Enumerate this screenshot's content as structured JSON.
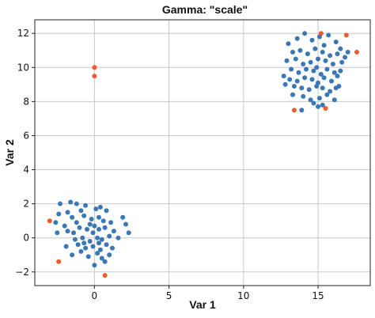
{
  "chart_data": {
    "type": "scatter",
    "title": "Gamma: \"scale\"",
    "xlabel": "Var 1",
    "ylabel": "Var 2",
    "xlim": [
      -4.0,
      18.5
    ],
    "ylim": [
      -2.8,
      12.8
    ],
    "xticks": [
      0,
      5,
      10,
      15
    ],
    "yticks": [
      -2,
      0,
      2,
      4,
      6,
      8,
      10,
      12
    ],
    "grid": true,
    "colors": {
      "inlier": "#3a78b5",
      "outlier": "#f15a2a"
    },
    "series": [
      {
        "role": "inlier",
        "points": [
          [
            -2.3,
            2.0
          ],
          [
            -1.6,
            2.1
          ],
          [
            -1.2,
            2.0
          ],
          [
            -0.6,
            1.9
          ],
          [
            0.4,
            1.8
          ],
          [
            -2.4,
            1.4
          ],
          [
            -1.8,
            1.5
          ],
          [
            -0.9,
            1.6
          ],
          [
            0.1,
            1.7
          ],
          [
            0.8,
            1.6
          ],
          [
            1.9,
            1.2
          ],
          [
            -2.6,
            0.9
          ],
          [
            -2.0,
            0.7
          ],
          [
            -1.5,
            1.2
          ],
          [
            -1.2,
            0.9
          ],
          [
            -0.7,
            1.3
          ],
          [
            -0.2,
            1.1
          ],
          [
            0.3,
            1.2
          ],
          [
            0.6,
            1.0
          ],
          [
            1.1,
            0.9
          ],
          [
            2.1,
            0.8
          ],
          [
            -1.8,
            0.4
          ],
          [
            -1.4,
            0.3
          ],
          [
            -1.0,
            0.6
          ],
          [
            -0.5,
            0.5
          ],
          [
            -0.1,
            0.3
          ],
          [
            0.3,
            0.5
          ],
          [
            0.7,
            0.6
          ],
          [
            1.3,
            0.4
          ],
          [
            2.3,
            0.3
          ],
          [
            -2.5,
            0.3
          ],
          [
            -1.3,
            -0.1
          ],
          [
            -0.8,
            0.0
          ],
          [
            -0.3,
            -0.2
          ],
          [
            0.2,
            0.0
          ],
          [
            0.5,
            -0.1
          ],
          [
            1.0,
            0.1
          ],
          [
            1.6,
            0.0
          ],
          [
            -1.9,
            -0.5
          ],
          [
            -1.1,
            -0.4
          ],
          [
            -0.6,
            -0.6
          ],
          [
            -0.1,
            -0.5
          ],
          [
            0.3,
            -0.3
          ],
          [
            0.8,
            -0.4
          ],
          [
            1.2,
            -0.6
          ],
          [
            -1.5,
            -1.0
          ],
          [
            -0.9,
            -0.8
          ],
          [
            -0.4,
            -1.1
          ],
          [
            0.2,
            -0.9
          ],
          [
            0.5,
            -1.2
          ],
          [
            1.0,
            -1.0
          ],
          [
            0.0,
            -1.6
          ],
          [
            0.7,
            -1.4
          ],
          [
            -0.3,
            0.8
          ],
          [
            0.0,
            0.7
          ],
          [
            0.4,
            -0.7
          ],
          [
            -0.7,
            -0.3
          ],
          [
            13.0,
            11.4
          ],
          [
            13.6,
            11.7
          ],
          [
            14.1,
            12.0
          ],
          [
            14.6,
            11.6
          ],
          [
            15.1,
            11.8
          ],
          [
            15.7,
            11.9
          ],
          [
            16.2,
            11.5
          ],
          [
            15.4,
            11.3
          ],
          [
            16.5,
            11.1
          ],
          [
            13.3,
            10.9
          ],
          [
            13.8,
            11.0
          ],
          [
            14.3,
            10.8
          ],
          [
            14.8,
            11.1
          ],
          [
            15.3,
            10.9
          ],
          [
            15.8,
            10.7
          ],
          [
            16.3,
            10.8
          ],
          [
            16.8,
            10.6
          ],
          [
            17.0,
            10.9
          ],
          [
            12.9,
            10.4
          ],
          [
            13.5,
            10.5
          ],
          [
            14.0,
            10.2
          ],
          [
            14.5,
            10.3
          ],
          [
            15.0,
            10.5
          ],
          [
            15.5,
            10.4
          ],
          [
            16.0,
            10.2
          ],
          [
            16.6,
            10.3
          ],
          [
            13.2,
            9.9
          ],
          [
            13.7,
            9.7
          ],
          [
            14.2,
            9.9
          ],
          [
            14.7,
            9.8
          ],
          [
            15.2,
            9.6
          ],
          [
            15.6,
            9.9
          ],
          [
            16.1,
            9.7
          ],
          [
            16.5,
            9.8
          ],
          [
            14.9,
            10.0
          ],
          [
            12.7,
            9.5
          ],
          [
            13.1,
            9.3
          ],
          [
            13.6,
            9.2
          ],
          [
            14.1,
            9.4
          ],
          [
            14.6,
            9.3
          ],
          [
            15.0,
            9.1
          ],
          [
            15.4,
            9.4
          ],
          [
            15.9,
            9.2
          ],
          [
            16.3,
            9.5
          ],
          [
            12.8,
            9.0
          ],
          [
            13.4,
            8.9
          ],
          [
            13.9,
            8.8
          ],
          [
            14.4,
            8.7
          ],
          [
            14.9,
            8.9
          ],
          [
            15.3,
            8.8
          ],
          [
            15.8,
            8.6
          ],
          [
            16.2,
            8.8
          ],
          [
            13.3,
            8.4
          ],
          [
            14.0,
            8.3
          ],
          [
            14.5,
            8.1
          ],
          [
            15.1,
            8.2
          ],
          [
            15.6,
            8.4
          ],
          [
            16.1,
            8.1
          ],
          [
            14.7,
            7.9
          ],
          [
            15.3,
            7.8
          ],
          [
            13.9,
            7.5
          ],
          [
            15.0,
            7.7
          ],
          [
            16.4,
            8.9
          ]
        ]
      },
      {
        "role": "outlier",
        "points": [
          [
            0.0,
            10.0
          ],
          [
            0.0,
            9.5
          ],
          [
            15.2,
            12.0
          ],
          [
            16.9,
            11.9
          ],
          [
            17.6,
            10.9
          ],
          [
            13.4,
            7.5
          ],
          [
            15.5,
            7.6
          ],
          [
            -3.0,
            1.0
          ],
          [
            -2.4,
            -1.4
          ],
          [
            0.7,
            -2.2
          ]
        ]
      }
    ]
  }
}
